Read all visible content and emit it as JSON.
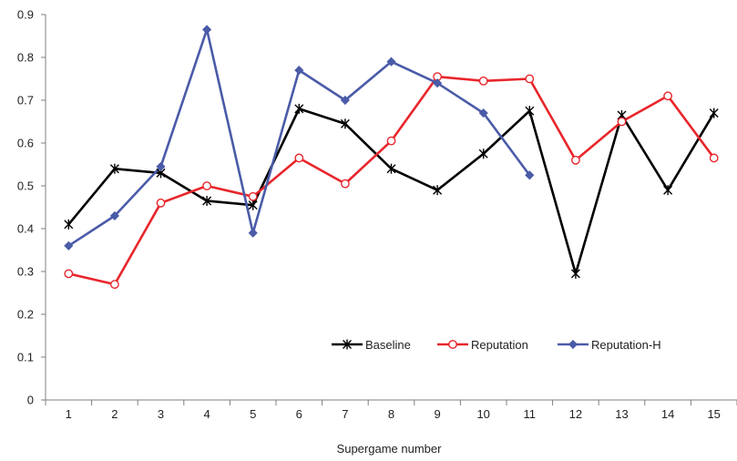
{
  "chart_data": {
    "type": "line",
    "x": [
      1,
      2,
      3,
      4,
      5,
      6,
      7,
      8,
      9,
      10,
      11,
      12,
      13,
      14,
      15
    ],
    "xlabel": "Supergame number",
    "ylabel": "",
    "ylim": [
      0,
      0.9
    ],
    "yticks": [
      0,
      0.1,
      0.2,
      0.3,
      0.4,
      0.5,
      0.6,
      0.7,
      0.8,
      0.9
    ],
    "ytick_labels": [
      "0",
      "0.1",
      "0.2",
      "0.3",
      "0.4",
      "0.5",
      "0.6",
      "0.7",
      "0.8",
      "0.9"
    ],
    "legend_position": "lower-right",
    "series": [
      {
        "name": "Baseline",
        "color": "#000000",
        "marker": "star",
        "values": [
          0.41,
          0.54,
          0.53,
          0.465,
          0.455,
          0.68,
          0.645,
          0.54,
          0.49,
          0.575,
          0.675,
          0.295,
          0.665,
          0.49,
          0.67
        ]
      },
      {
        "name": "Reputation",
        "color": "#e8262c",
        "marker": "open-circle",
        "values": [
          0.295,
          0.27,
          0.46,
          0.5,
          0.475,
          0.565,
          0.505,
          0.605,
          0.755,
          0.745,
          0.75,
          0.56,
          0.65,
          0.71,
          0.565
        ]
      },
      {
        "name": "Reputation-H",
        "color": "#4a5ba8",
        "marker": "diamond",
        "values": [
          0.36,
          0.43,
          0.545,
          0.865,
          0.39,
          0.77,
          0.7,
          0.79,
          0.74,
          0.67,
          0.525,
          null,
          null,
          null,
          null
        ]
      }
    ]
  }
}
